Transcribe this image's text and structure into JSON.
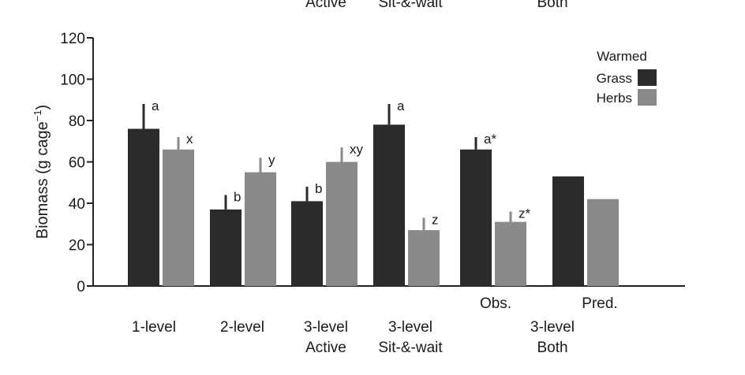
{
  "chart_data": {
    "type": "bar",
    "ylabel": "Biomass (g cage",
    "ylabel_sup": "−1",
    "ylabel_close": ")",
    "ylim": [
      0,
      120
    ],
    "yticks": [
      "0",
      "20",
      "40",
      "60",
      "80",
      "100",
      "120"
    ],
    "top_cropped_labels": [
      "Active",
      "Sit-&-wait",
      "Both"
    ],
    "legend": {
      "title": "Warmed",
      "position": "top-right",
      "entries": [
        {
          "name": "Grass",
          "color": "#2b2b2b"
        },
        {
          "name": "Herbs",
          "color": "#8a8a8a"
        }
      ]
    },
    "groups": [
      {
        "label": [
          "1-level"
        ],
        "grass": {
          "value": 76,
          "err": 12,
          "letter": "a"
        },
        "herbs": {
          "value": 66,
          "err": 6,
          "letter": "x"
        }
      },
      {
        "label": [
          "2-level"
        ],
        "grass": {
          "value": 37,
          "err": 7,
          "letter": "b"
        },
        "herbs": {
          "value": 55,
          "err": 7,
          "letter": "y"
        }
      },
      {
        "label": [
          "3-level",
          "Active"
        ],
        "grass": {
          "value": 41,
          "err": 7,
          "letter": "b"
        },
        "herbs": {
          "value": 60,
          "err": 7,
          "letter": "xy"
        }
      },
      {
        "label": [
          "3-level",
          "Sit-&-wait"
        ],
        "grass": {
          "value": 78,
          "err": 10,
          "letter": "a"
        },
        "herbs": {
          "value": 27,
          "err": 6,
          "letter": "z"
        }
      },
      {
        "label": [
          "Obs."
        ],
        "grass": {
          "value": 66,
          "err": 6,
          "letter": "a*"
        },
        "herbs": {
          "value": 31,
          "err": 5,
          "letter": "z*"
        }
      },
      {
        "label": [
          "Pred."
        ],
        "grass": {
          "value": 53,
          "err": 0,
          "letter": ""
        },
        "herbs": {
          "value": 42,
          "err": 0,
          "letter": ""
        }
      }
    ],
    "group_caption": [
      "3-level",
      "Both"
    ]
  }
}
